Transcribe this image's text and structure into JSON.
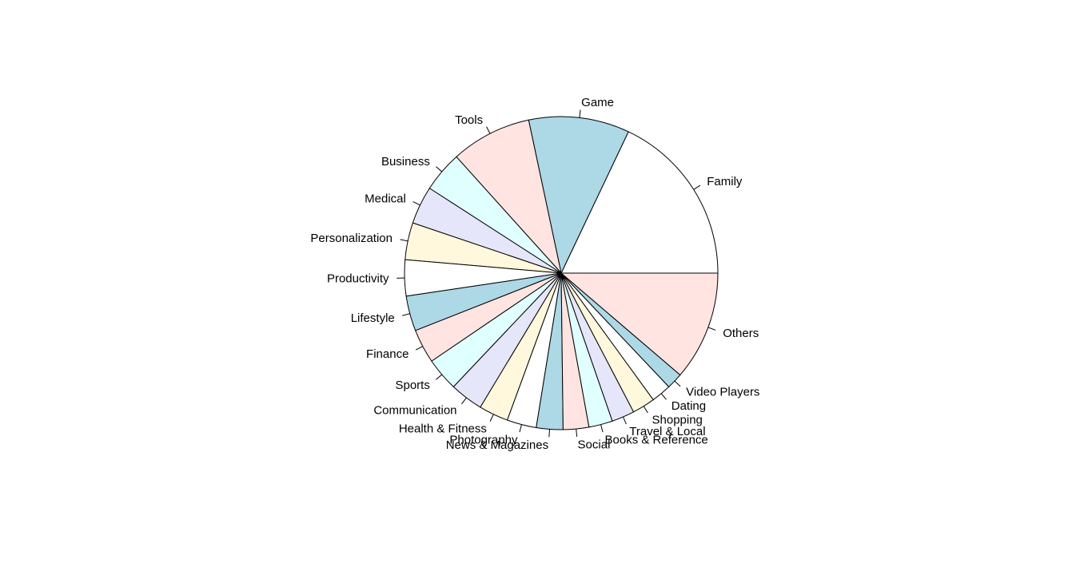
{
  "chart_data": {
    "type": "pie",
    "title": "",
    "start_angle_deg": 0,
    "direction": "counterclockwise",
    "colors": [
      "#ffffff",
      "#add8e6",
      "#ffe4e1",
      "#e0ffff",
      "#e6e6fa",
      "#fff8dc"
    ],
    "border_color": "#000000",
    "slices": [
      {
        "label": "Family",
        "value": 18.3
      },
      {
        "label": "Game",
        "value": 10.6
      },
      {
        "label": "Tools",
        "value": 8.5
      },
      {
        "label": "Business",
        "value": 4.3
      },
      {
        "label": "Medical",
        "value": 4.0
      },
      {
        "label": "Personalization",
        "value": 3.9
      },
      {
        "label": "Productivity",
        "value": 3.8
      },
      {
        "label": "Lifestyle",
        "value": 3.7
      },
      {
        "label": "Finance",
        "value": 3.6
      },
      {
        "label": "Sports",
        "value": 3.5
      },
      {
        "label": "Communication",
        "value": 3.5
      },
      {
        "label": "Health & Fitness",
        "value": 3.1
      },
      {
        "label": "Photography",
        "value": 3.1
      },
      {
        "label": "News & Magazines",
        "value": 2.8
      },
      {
        "label": "Social",
        "value": 2.7
      },
      {
        "label": "Books & Reference",
        "value": 2.5
      },
      {
        "label": "Travel & Local",
        "value": 2.4
      },
      {
        "label": "Shopping",
        "value": 2.4
      },
      {
        "label": "Dating",
        "value": 2.1
      },
      {
        "label": "Video Players",
        "value": 1.7
      },
      {
        "label": "Others",
        "value": 11.5
      }
    ]
  }
}
